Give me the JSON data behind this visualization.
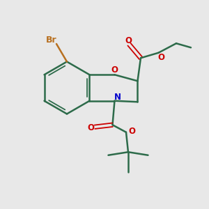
{
  "background_color": "#e8e8e8",
  "bond_color": "#2d6b4a",
  "nitrogen_color": "#0000cc",
  "oxygen_color": "#cc0000",
  "bromine_color": "#b87020",
  "figsize": [
    3.0,
    3.0
  ],
  "dpi": 100,
  "xlim": [
    0,
    10
  ],
  "ylim": [
    0,
    10
  ]
}
